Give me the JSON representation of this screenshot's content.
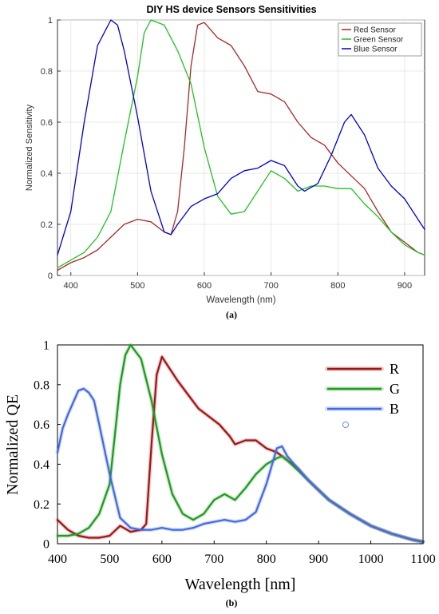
{
  "chart_data": [
    {
      "type": "line",
      "title": "DIY HS device Sensors Sensitivities",
      "xlabel": "Wavelength (nm)",
      "ylabel": "Normalized Sensitivity",
      "caption": "(a)",
      "xlim": [
        380,
        930
      ],
      "ylim": [
        0,
        1
      ],
      "xticks": [
        400,
        500,
        600,
        700,
        800,
        900
      ],
      "yticks": [
        0,
        0.2,
        0.4,
        0.6,
        0.8,
        1
      ],
      "ytick_labels": [
        "0",
        "0.2",
        "0.4",
        "0.6",
        "0.8",
        "1"
      ],
      "grid": true,
      "legend_position": "top-right",
      "series": [
        {
          "name": "Red Sensor",
          "color": "#a52a2a",
          "points": [
            [
              380,
              0.02
            ],
            [
              400,
              0.05
            ],
            [
              420,
              0.07
            ],
            [
              440,
              0.1
            ],
            [
              460,
              0.15
            ],
            [
              480,
              0.2
            ],
            [
              500,
              0.22
            ],
            [
              520,
              0.21
            ],
            [
              540,
              0.17
            ],
            [
              550,
              0.16
            ],
            [
              560,
              0.25
            ],
            [
              570,
              0.5
            ],
            [
              580,
              0.82
            ],
            [
              590,
              0.98
            ],
            [
              600,
              0.99
            ],
            [
              620,
              0.93
            ],
            [
              640,
              0.9
            ],
            [
              660,
              0.82
            ],
            [
              680,
              0.72
            ],
            [
              700,
              0.71
            ],
            [
              720,
              0.68
            ],
            [
              740,
              0.6
            ],
            [
              760,
              0.54
            ],
            [
              780,
              0.51
            ],
            [
              800,
              0.44
            ],
            [
              820,
              0.39
            ],
            [
              840,
              0.34
            ],
            [
              860,
              0.25
            ],
            [
              880,
              0.17
            ],
            [
              900,
              0.13
            ],
            [
              920,
              0.09
            ],
            [
              930,
              0.08
            ]
          ]
        },
        {
          "name": "Green Sensor",
          "color": "#22c022",
          "points": [
            [
              380,
              0.03
            ],
            [
              400,
              0.06
            ],
            [
              420,
              0.09
            ],
            [
              440,
              0.15
            ],
            [
              460,
              0.25
            ],
            [
              480,
              0.52
            ],
            [
              500,
              0.78
            ],
            [
              510,
              0.95
            ],
            [
              520,
              1.0
            ],
            [
              540,
              0.98
            ],
            [
              560,
              0.88
            ],
            [
              580,
              0.75
            ],
            [
              600,
              0.5
            ],
            [
              620,
              0.31
            ],
            [
              640,
              0.24
            ],
            [
              660,
              0.25
            ],
            [
              680,
              0.33
            ],
            [
              700,
              0.41
            ],
            [
              720,
              0.38
            ],
            [
              740,
              0.33
            ],
            [
              760,
              0.35
            ],
            [
              780,
              0.35
            ],
            [
              800,
              0.34
            ],
            [
              820,
              0.34
            ],
            [
              840,
              0.28
            ],
            [
              860,
              0.23
            ],
            [
              880,
              0.17
            ],
            [
              900,
              0.12
            ],
            [
              920,
              0.09
            ],
            [
              930,
              0.08
            ]
          ]
        },
        {
          "name": "Blue Sensor",
          "color": "#0000cc",
          "points": [
            [
              380,
              0.08
            ],
            [
              400,
              0.25
            ],
            [
              420,
              0.6
            ],
            [
              440,
              0.9
            ],
            [
              460,
              1.0
            ],
            [
              470,
              0.98
            ],
            [
              480,
              0.88
            ],
            [
              500,
              0.62
            ],
            [
              520,
              0.33
            ],
            [
              540,
              0.17
            ],
            [
              550,
              0.16
            ],
            [
              560,
              0.2
            ],
            [
              580,
              0.27
            ],
            [
              600,
              0.3
            ],
            [
              620,
              0.32
            ],
            [
              640,
              0.38
            ],
            [
              660,
              0.41
            ],
            [
              680,
              0.42
            ],
            [
              700,
              0.45
            ],
            [
              720,
              0.43
            ],
            [
              740,
              0.35
            ],
            [
              750,
              0.33
            ],
            [
              770,
              0.36
            ],
            [
              790,
              0.47
            ],
            [
              810,
              0.6
            ],
            [
              820,
              0.63
            ],
            [
              840,
              0.55
            ],
            [
              860,
              0.42
            ],
            [
              880,
              0.35
            ],
            [
              900,
              0.3
            ],
            [
              920,
              0.22
            ],
            [
              930,
              0.18
            ]
          ]
        }
      ]
    },
    {
      "type": "line",
      "title": "",
      "xlabel": "Wavelength [nm]",
      "ylabel": "Normalized QE",
      "caption": "(b)",
      "xlim": [
        400,
        1100
      ],
      "ylim": [
        0,
        1
      ],
      "xticks": [
        400,
        500,
        600,
        700,
        800,
        900,
        1000,
        1100
      ],
      "yticks": [
        0,
        0.2,
        0.4,
        0.6,
        0.8,
        1
      ],
      "ytick_labels": [
        "0",
        "0.2",
        "0.4",
        "0.6",
        "0.8",
        "1"
      ],
      "grid": false,
      "legend_position": "top-right",
      "series": [
        {
          "name": "R",
          "color": "#a01414",
          "points": [
            [
              400,
              0.12
            ],
            [
              420,
              0.07
            ],
            [
              440,
              0.04
            ],
            [
              460,
              0.03
            ],
            [
              480,
              0.03
            ],
            [
              500,
              0.04
            ],
            [
              520,
              0.09
            ],
            [
              540,
              0.06
            ],
            [
              560,
              0.07
            ],
            [
              570,
              0.1
            ],
            [
              580,
              0.5
            ],
            [
              590,
              0.85
            ],
            [
              600,
              0.94
            ],
            [
              610,
              0.9
            ],
            [
              630,
              0.82
            ],
            [
              650,
              0.75
            ],
            [
              670,
              0.68
            ],
            [
              690,
              0.64
            ],
            [
              710,
              0.6
            ],
            [
              730,
              0.54
            ],
            [
              740,
              0.5
            ],
            [
              760,
              0.52
            ],
            [
              780,
              0.52
            ],
            [
              800,
              0.48
            ],
            [
              820,
              0.46
            ],
            [
              840,
              0.42
            ],
            [
              860,
              0.38
            ],
            [
              880,
              0.32
            ],
            [
              900,
              0.27
            ],
            [
              920,
              0.22
            ],
            [
              960,
              0.15
            ],
            [
              1000,
              0.09
            ],
            [
              1040,
              0.05
            ],
            [
              1080,
              0.02
            ],
            [
              1100,
              0.01
            ]
          ]
        },
        {
          "name": "G",
          "color": "#1f9a1f",
          "points": [
            [
              400,
              0.04
            ],
            [
              420,
              0.04
            ],
            [
              440,
              0.05
            ],
            [
              460,
              0.08
            ],
            [
              480,
              0.15
            ],
            [
              500,
              0.3
            ],
            [
              510,
              0.55
            ],
            [
              520,
              0.8
            ],
            [
              530,
              0.95
            ],
            [
              540,
              1.0
            ],
            [
              560,
              0.93
            ],
            [
              580,
              0.72
            ],
            [
              600,
              0.45
            ],
            [
              620,
              0.25
            ],
            [
              640,
              0.15
            ],
            [
              660,
              0.12
            ],
            [
              680,
              0.15
            ],
            [
              700,
              0.22
            ],
            [
              720,
              0.25
            ],
            [
              740,
              0.22
            ],
            [
              760,
              0.28
            ],
            [
              780,
              0.35
            ],
            [
              800,
              0.4
            ],
            [
              820,
              0.43
            ],
            [
              830,
              0.44
            ],
            [
              840,
              0.42
            ],
            [
              860,
              0.37
            ],
            [
              880,
              0.32
            ],
            [
              900,
              0.27
            ],
            [
              920,
              0.22
            ],
            [
              960,
              0.15
            ],
            [
              1000,
              0.09
            ],
            [
              1040,
              0.05
            ],
            [
              1080,
              0.02
            ],
            [
              1100,
              0.01
            ]
          ]
        },
        {
          "name": "B",
          "color": "#4169e1",
          "points": [
            [
              400,
              0.46
            ],
            [
              410,
              0.58
            ],
            [
              420,
              0.65
            ],
            [
              440,
              0.77
            ],
            [
              450,
              0.78
            ],
            [
              460,
              0.76
            ],
            [
              470,
              0.72
            ],
            [
              480,
              0.6
            ],
            [
              500,
              0.35
            ],
            [
              520,
              0.13
            ],
            [
              540,
              0.08
            ],
            [
              560,
              0.07
            ],
            [
              580,
              0.07
            ],
            [
              600,
              0.08
            ],
            [
              620,
              0.07
            ],
            [
              640,
              0.07
            ],
            [
              660,
              0.08
            ],
            [
              680,
              0.1
            ],
            [
              700,
              0.11
            ],
            [
              720,
              0.12
            ],
            [
              740,
              0.11
            ],
            [
              760,
              0.12
            ],
            [
              780,
              0.16
            ],
            [
              800,
              0.3
            ],
            [
              820,
              0.48
            ],
            [
              830,
              0.49
            ],
            [
              840,
              0.44
            ],
            [
              860,
              0.38
            ],
            [
              880,
              0.32
            ],
            [
              900,
              0.27
            ],
            [
              920,
              0.22
            ],
            [
              960,
              0.15
            ],
            [
              1000,
              0.09
            ],
            [
              1040,
              0.05
            ],
            [
              1080,
              0.02
            ],
            [
              1100,
              0.01
            ]
          ]
        }
      ]
    }
  ]
}
